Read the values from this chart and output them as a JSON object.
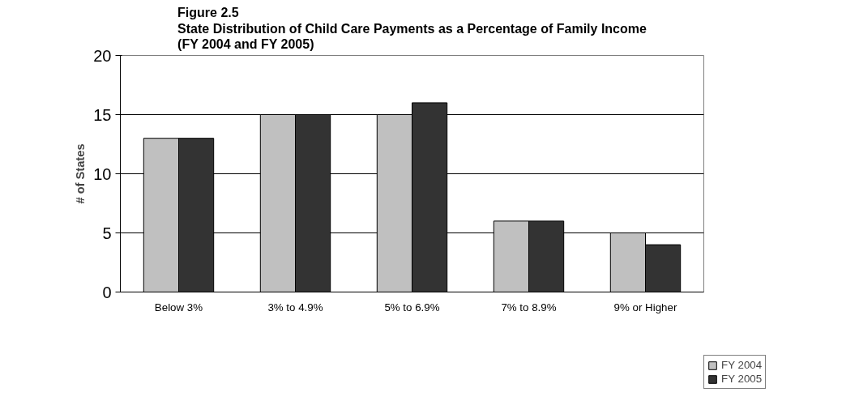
{
  "chart_data": {
    "type": "bar",
    "title": "Figure 2.5\nState Distribution of Child Care Payments as a Percentage of Family Income\n(FY 2004 and FY 2005)",
    "ylabel": "# of States",
    "categories": [
      "Below 3%",
      "3% to 4.9%",
      "5% to 6.9%",
      "7% to 8.9%",
      "9% or Higher"
    ],
    "series": [
      {
        "name": "FY 2004",
        "color": "#c0c0c0",
        "values": [
          13,
          15,
          15,
          6,
          5
        ]
      },
      {
        "name": "FY 2005",
        "color": "#333333",
        "values": [
          13,
          15,
          16,
          6,
          4
        ]
      }
    ],
    "ylim": [
      0,
      20
    ],
    "yticks": [
      0,
      5,
      10,
      15,
      20
    ],
    "grid": "y",
    "legend": "right"
  }
}
